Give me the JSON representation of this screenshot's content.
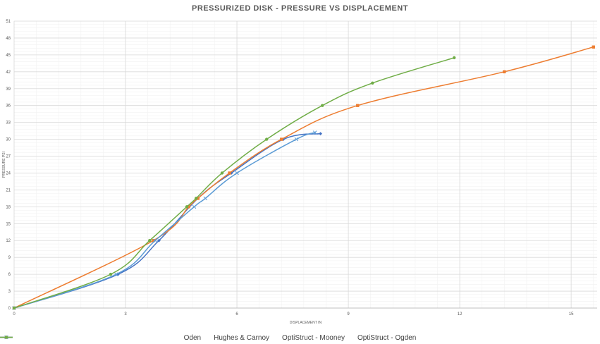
{
  "chart_data": {
    "type": "line",
    "title": "PRESSURIZED DISK  -  PRESSURE VS DISPLACEMENT",
    "xlabel": "DISPLACEMENT IN",
    "ylabel": "PRESSURE PSI",
    "xlim": [
      0,
      15.7
    ],
    "ylim": [
      0,
      51
    ],
    "xticks": [
      0,
      3,
      6,
      9,
      12,
      15
    ],
    "yticks": [
      0,
      3,
      6,
      9,
      12,
      15,
      18,
      21,
      24,
      27,
      30,
      33,
      36,
      39,
      42,
      45,
      48,
      51
    ],
    "grid": true,
    "legend_position": "bottom",
    "series": [
      {
        "name": "Oden",
        "color": "#4472c4",
        "marker": "diamond",
        "points": [
          [
            0,
            0
          ],
          [
            2.8,
            6
          ],
          [
            3.9,
            12
          ],
          [
            4.95,
            19.5
          ],
          [
            5.85,
            24
          ],
          [
            7.25,
            30
          ],
          [
            8.25,
            31
          ]
        ]
      },
      {
        "name": "Hughes & Carnoy",
        "color": "#ed7d31",
        "marker": "square",
        "points": [
          [
            0,
            0
          ],
          [
            3.75,
            12
          ],
          [
            4.7,
            18
          ],
          [
            4.95,
            19.5
          ],
          [
            5.8,
            24
          ],
          [
            7.2,
            30
          ],
          [
            9.25,
            36
          ],
          [
            13.2,
            42
          ],
          [
            15.6,
            46.4
          ]
        ]
      },
      {
        "name": "OptiStruct - Mooney",
        "color": "#5b9bd5",
        "marker": "x",
        "points": [
          [
            0,
            0
          ],
          [
            2.75,
            6
          ],
          [
            3.8,
            12
          ],
          [
            4.85,
            18
          ],
          [
            5.15,
            19.5
          ],
          [
            6.0,
            24
          ],
          [
            7.6,
            30
          ],
          [
            8.1,
            31.2
          ]
        ]
      },
      {
        "name": "OptiStruct - Ogden",
        "color": "#70ad47",
        "marker": "circle",
        "points": [
          [
            0,
            0
          ],
          [
            2.6,
            6
          ],
          [
            3.65,
            12
          ],
          [
            4.65,
            18
          ],
          [
            4.9,
            19.5
          ],
          [
            5.6,
            24
          ],
          [
            6.8,
            30
          ],
          [
            8.3,
            36
          ],
          [
            9.65,
            40
          ],
          [
            11.85,
            44.5
          ]
        ]
      }
    ]
  }
}
